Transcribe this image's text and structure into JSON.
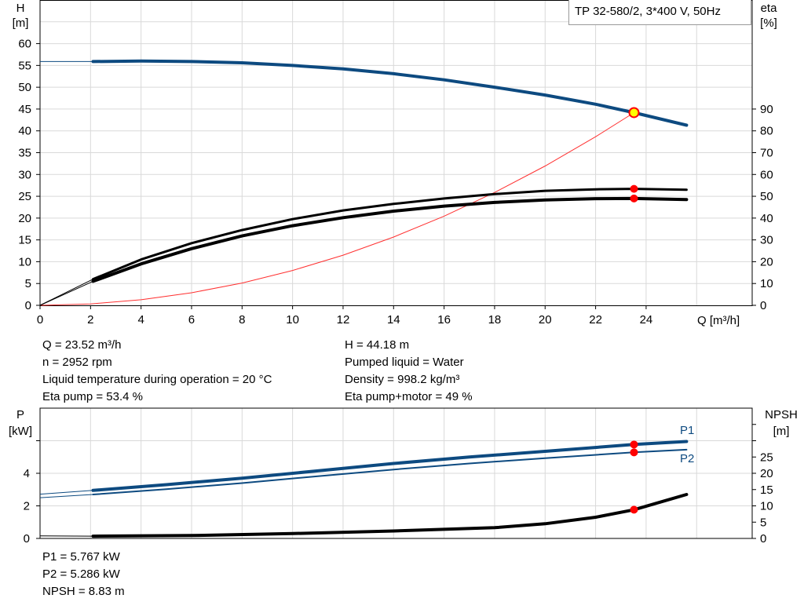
{
  "title": "TP 32-580/2, 3*400 V, 50Hz",
  "colors": {
    "head": "#0d4a80",
    "power": "#0d4a80",
    "eta": "#000000",
    "npsh": "#000000",
    "system": "#ff3030",
    "marker": "#ff0000",
    "duty_fill": "#ffff00",
    "grid": "#d9d9d9"
  },
  "chart_data": [
    {
      "type": "line",
      "xlabel": "Q [m³/h]",
      "ylabel": "H",
      "ylabel_unit": "[m]",
      "y2label": "eta",
      "y2label_unit": "[%]",
      "xlim": [
        0,
        28.2
      ],
      "ylim": [
        0,
        70
      ],
      "y2lim": [
        0,
        140
      ],
      "grid": true,
      "x_ticks": [
        0,
        2,
        4,
        6,
        8,
        10,
        12,
        14,
        16,
        18,
        20,
        22,
        24
      ],
      "y_ticks": [
        0,
        5,
        10,
        15,
        20,
        25,
        30,
        35,
        40,
        45,
        50,
        55,
        60
      ],
      "y2_ticks": [
        0,
        10,
        20,
        30,
        40,
        50,
        60,
        70,
        80,
        90
      ],
      "series": [
        {
          "key": "head",
          "axis": "left",
          "x": [
            0,
            2.1,
            4,
            6,
            8,
            10,
            12,
            14,
            16,
            18,
            20,
            22,
            23.52,
            25.6
          ],
          "y": [
            55.9,
            55.9,
            56,
            55.9,
            55.6,
            55.0,
            54.2,
            53.1,
            51.7,
            50.0,
            48.2,
            46.1,
            44.18,
            41.3
          ]
        },
        {
          "key": "eta_pump",
          "axis": "right",
          "x": [
            0,
            2.1,
            4,
            6,
            8,
            10,
            12,
            14,
            16,
            18,
            20,
            22,
            23.52,
            25.6
          ],
          "y": [
            0,
            12,
            21,
            28.5,
            34.5,
            39.5,
            43.5,
            46.5,
            49,
            51,
            52.5,
            53.2,
            53.4,
            53
          ]
        },
        {
          "key": "eta_pump_motor",
          "axis": "right",
          "x": [
            0,
            2.1,
            4,
            6,
            8,
            10,
            12,
            14,
            16,
            18,
            20,
            22,
            23.52,
            25.6
          ],
          "y": [
            0,
            11,
            19,
            26,
            31.8,
            36.5,
            40.2,
            43.2,
            45.5,
            47.2,
            48.3,
            48.9,
            49,
            48.5
          ]
        },
        {
          "key": "system_curve",
          "axis": "left",
          "x": [
            0,
            2,
            4,
            6,
            8,
            10,
            12,
            14,
            16,
            18,
            20,
            22,
            23.52
          ],
          "y": [
            0,
            0.32,
            1.28,
            2.88,
            5.11,
            7.99,
            11.5,
            15.65,
            20.44,
            25.87,
            31.94,
            38.65,
            44.18
          ]
        }
      ],
      "duty_point": {
        "Q": 23.52,
        "H": 44.18,
        "eta_pump": 53.4,
        "eta_pump_motor": 49
      }
    },
    {
      "type": "line",
      "ylabel": "P",
      "ylabel_unit": "[kW]",
      "y2label": "NPSH",
      "y2label_unit": "[m]",
      "xlim": [
        0,
        28.2
      ],
      "ylim": [
        0,
        8
      ],
      "y2lim": [
        0,
        40
      ],
      "grid": true,
      "y_ticks": [
        0,
        2,
        4
      ],
      "y2_ticks": [
        0,
        5,
        10,
        15,
        20,
        25
      ],
      "series": [
        {
          "key": "P1",
          "name": "P1",
          "axis": "left",
          "x": [
            0,
            2.1,
            5,
            8,
            11,
            14,
            17,
            20,
            23.52,
            25.6
          ],
          "y": [
            2.72,
            2.95,
            3.3,
            3.7,
            4.15,
            4.6,
            5.0,
            5.35,
            5.767,
            5.95
          ]
        },
        {
          "key": "P2",
          "name": "P2",
          "axis": "left",
          "x": [
            0,
            2.1,
            5,
            8,
            11,
            14,
            17,
            20,
            23.52,
            25.6
          ],
          "y": [
            2.5,
            2.7,
            3.02,
            3.4,
            3.82,
            4.23,
            4.6,
            4.93,
            5.286,
            5.45
          ]
        },
        {
          "key": "NPSH",
          "axis": "right",
          "x": [
            0,
            2.1,
            6,
            10,
            14,
            18,
            20,
            22,
            23.52,
            25.6
          ],
          "y": [
            0.8,
            0.7,
            0.9,
            1.5,
            2.3,
            3.3,
            4.5,
            6.5,
            8.83,
            13.5
          ]
        }
      ],
      "duty_point": {
        "Q": 23.52,
        "P1": 5.767,
        "P2": 5.286,
        "NPSH": 8.83
      }
    }
  ],
  "info_left": [
    "Q = 23.52 m³/h",
    "n = 2952 rpm",
    "Liquid temperature during operation = 20 °C",
    "Eta pump = 53.4 %"
  ],
  "info_right": [
    "H = 44.18 m",
    "Pumped liquid = Water",
    "Density = 998.2 kg/m³",
    "Eta pump+motor = 49 %"
  ],
  "info_bottom": [
    "P1 = 5.767 kW",
    "P2 = 5.286 kW",
    "NPSH = 8.83 m"
  ]
}
